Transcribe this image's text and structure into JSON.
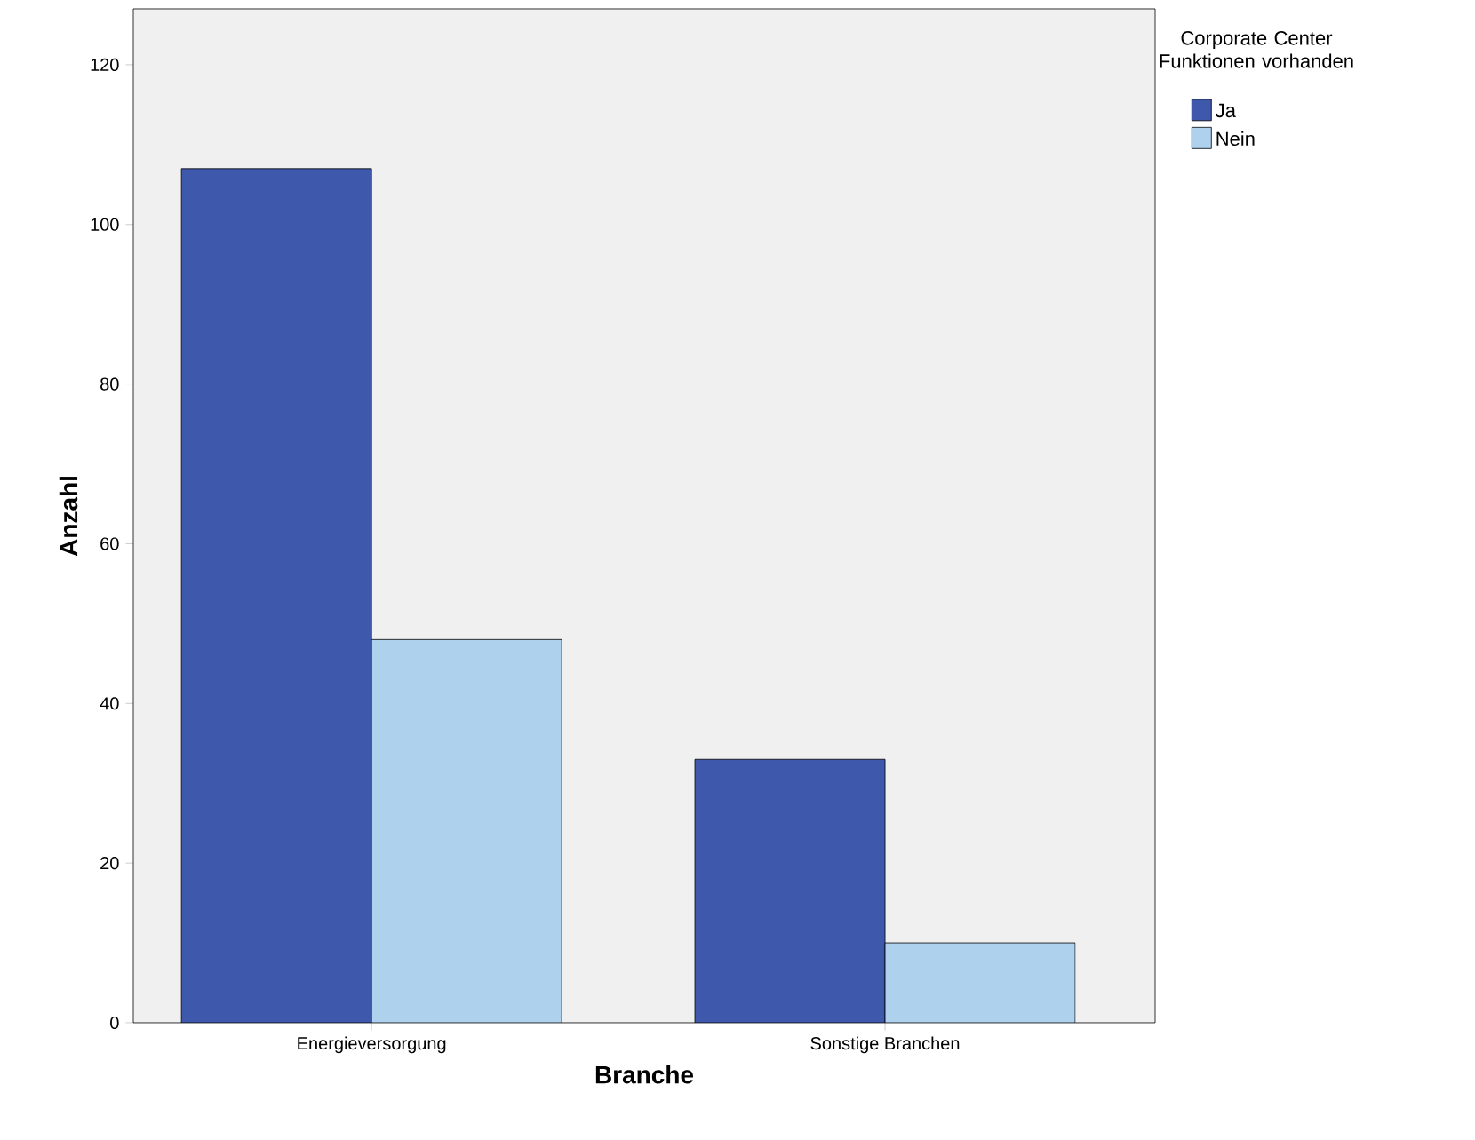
{
  "chart_data": {
    "type": "bar",
    "xlabel": "Branche",
    "ylabel": "Anzahl",
    "legend_title": "Corporate Center Funktionen vorhanden",
    "categories": [
      "Energieversorgung",
      "Sonstige Branchen"
    ],
    "series": [
      {
        "name": "Ja",
        "color": "#3e58ac",
        "values": [
          107,
          33
        ]
      },
      {
        "name": "Nein",
        "color": "#aed1ee",
        "values": [
          48,
          10
        ]
      }
    ],
    "ylim": [
      0,
      127
    ],
    "yticks": [
      0,
      20,
      40,
      60,
      80,
      100,
      120
    ],
    "legend": "top right"
  }
}
